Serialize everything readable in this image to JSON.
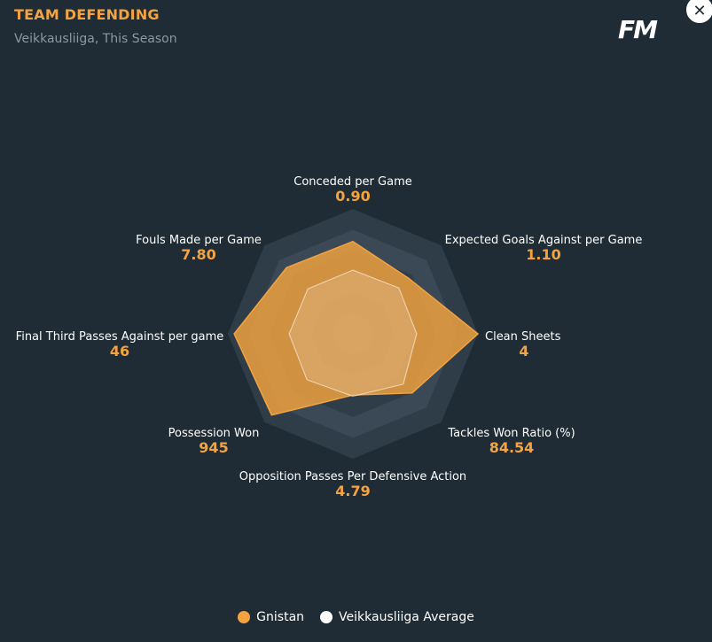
{
  "header": {
    "title": "TEAM DEFENDING",
    "subtitle": "Veikkausliiga, This Season",
    "logo_text": "FM",
    "close_icon": "close-icon"
  },
  "colors": {
    "team": "#f4a340",
    "average": "#ffffff",
    "ring_dark": "#2e3d48",
    "ring_light": "#3a4955"
  },
  "chart_data": {
    "type": "radar",
    "axes": [
      {
        "label": "Conceded per Game",
        "value": "0.90"
      },
      {
        "label": "Expected Goals Against per Game",
        "value": "1.10"
      },
      {
        "label": "Clean Sheets",
        "value": "4"
      },
      {
        "label": "Tackles Won Ratio (%)",
        "value": "84.54"
      },
      {
        "label": "Opposition Passes Per Defensive Action",
        "value": "4.79"
      },
      {
        "label": "Possession Won",
        "value": "945"
      },
      {
        "label": "Final Third Passes Against per game",
        "value": "46"
      },
      {
        "label": "Fouls Made per Game",
        "value": "7.80"
      }
    ],
    "series": [
      {
        "name": "Gnistan",
        "fractions": [
          0.74,
          0.63,
          1.0,
          0.67,
          0.49,
          0.92,
          0.95,
          0.75
        ]
      },
      {
        "name": "Veikkausliiga Average",
        "fractions": [
          0.51,
          0.52,
          0.51,
          0.57,
          0.5,
          0.52,
          0.51,
          0.51
        ]
      }
    ],
    "rings": 6,
    "legend_position": "bottom-center"
  },
  "legend": [
    {
      "label": "Gnistan",
      "color": "#f4a340"
    },
    {
      "label": "Veikkausliiga Average",
      "color": "#ffffff"
    }
  ]
}
